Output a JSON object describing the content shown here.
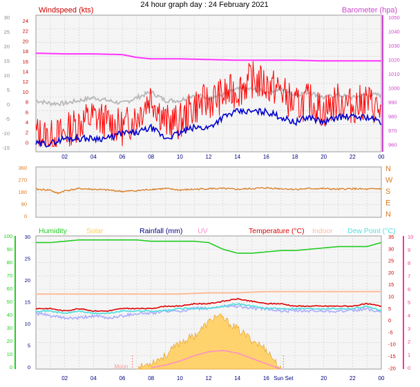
{
  "title": "24 hour graph day : 24 February 2021",
  "colors": {
    "wind_gust": "#ff0000",
    "wind_avg": "#0000cc",
    "baro": "#ff33ff",
    "temp_gray": "#bbbbbb",
    "dir": "#d97a1f",
    "humidity": "#22cc22",
    "solar": "#ffcc55",
    "rain": "#000080",
    "uv": "#ff88cc",
    "temp": "#dd0000",
    "indoor": "#ffbb99",
    "dewpoint": "#55dddd",
    "lavender": "#aaaaff",
    "axis_left_top": "#cc0000",
    "axis_right_top": "#cc44cc",
    "axis_green": "#22cc22",
    "axis_pink": "#ff3399"
  },
  "chart_data": [
    {
      "type": "line",
      "legend": {
        "left": "Windspeed (kts)",
        "right": "Barometer (hpa)"
      },
      "y_left_ticks_1": [
        "24",
        "22",
        "20",
        "18",
        "16",
        "14",
        "12",
        "10",
        "8",
        "6",
        "4",
        "2",
        "0"
      ],
      "y_left_ticks_2": [
        "30",
        "25",
        "20",
        "15",
        "10",
        "5",
        "0",
        "-5",
        "-10",
        "-15"
      ],
      "y_right_ticks": [
        "1050",
        "1040",
        "1030",
        "1020",
        "1010",
        "1000",
        "990",
        "980",
        "970",
        "960"
      ],
      "x_ticks": [
        "02",
        "04",
        "06",
        "08",
        "10",
        "12",
        "14",
        "16",
        "18",
        "20",
        "22",
        "00"
      ],
      "series": [
        {
          "name": "Barometer (hpa)",
          "x": [
            0,
            2,
            4,
            6,
            7,
            8,
            10,
            12,
            14,
            16,
            18,
            20,
            22,
            24
          ],
          "values": [
            1025,
            1024.5,
            1024.5,
            1024,
            1022,
            1021,
            1021,
            1020.5,
            1020,
            1020,
            1020,
            1019.5,
            1019.5,
            1019.5
          ]
        },
        {
          "x": [
            0,
            1,
            2,
            3,
            4,
            5,
            6,
            7,
            8,
            9,
            10,
            11,
            12,
            13,
            14,
            15,
            16,
            17,
            18,
            19,
            20,
            21,
            22,
            23,
            24
          ],
          "values": [
            1,
            0,
            0,
            1,
            2,
            1,
            0,
            2,
            4,
            1,
            1,
            3,
            2,
            3,
            5,
            5,
            4,
            5,
            3,
            4,
            2,
            3,
            2,
            3,
            3
          ]
        },
        {
          "x": [
            0,
            1,
            2,
            3,
            4,
            5,
            6,
            7,
            8,
            9,
            10,
            11,
            12,
            13,
            14,
            15,
            16,
            17,
            18,
            19,
            20,
            21,
            22,
            23,
            24
          ],
          "values": [
            3,
            2,
            3,
            5,
            6,
            5,
            4,
            6,
            10,
            5,
            5,
            8,
            9,
            10,
            11,
            13,
            12,
            11,
            8,
            9,
            7,
            9,
            8,
            9,
            7
          ]
        },
        {
          "x": [
            0,
            1,
            2,
            3,
            4,
            5,
            6,
            7,
            8,
            9,
            10,
            11,
            12,
            13,
            14,
            15,
            16,
            17,
            18,
            19,
            20,
            21,
            22,
            23,
            24
          ],
          "values": [
            1,
            1,
            2,
            2,
            2,
            2,
            3,
            3,
            4,
            2,
            3,
            4,
            4,
            6,
            7,
            7,
            7,
            6,
            5,
            6,
            5,
            6,
            6,
            6,
            5
          ]
        }
      ]
    },
    {
      "type": "line",
      "legend": {
        "right": [
          "N",
          "W",
          "S",
          "E",
          "N"
        ]
      },
      "y_left_ticks": [
        "360",
        "270",
        "180",
        "90",
        "0"
      ],
      "series": [
        {
          "x": [
            0,
            1,
            1.5,
            2,
            3,
            4,
            5,
            6,
            7,
            8,
            9,
            10,
            11,
            12,
            13,
            14,
            15,
            16,
            17,
            18,
            19,
            20,
            21,
            22,
            23,
            24
          ],
          "values": [
            200,
            195,
            170,
            190,
            205,
            200,
            195,
            185,
            190,
            200,
            205,
            195,
            200,
            205,
            205,
            200,
            205,
            210,
            205,
            200,
            205,
            205,
            200,
            205,
            200,
            205
          ]
        }
      ]
    },
    {
      "type": "line",
      "legend": [
        "Humidity",
        "Solar",
        "Rainfall (mm)",
        "UV",
        "Temperature (°C)",
        "Indoor",
        "Dew Point (°C)"
      ],
      "y_left_ticks_1": [
        "100",
        "90",
        "80",
        "70",
        "60",
        "50",
        "40",
        "30",
        "20",
        "10",
        "0"
      ],
      "y_left_ticks_2": [
        "30",
        "25",
        "20",
        "15",
        "10",
        "5",
        "0"
      ],
      "y_right_ticks_1": [
        "35",
        "30",
        "25",
        "20",
        "15",
        "10",
        "5",
        "0",
        "-5",
        "-10",
        "-15",
        "-20"
      ],
      "y_right_ticks_2": [
        "10",
        "9",
        "8",
        "7",
        "6",
        "5",
        "4",
        "3",
        "2",
        "1",
        "0"
      ],
      "annotations": [
        "Moon",
        "Sun Set"
      ],
      "series": [
        {
          "name": "Humidity",
          "x": [
            0,
            1,
            2,
            3,
            4,
            5,
            6,
            7,
            8,
            9,
            10,
            11,
            12,
            13,
            14,
            15,
            16,
            17,
            18,
            19,
            20,
            21,
            22,
            23,
            24
          ],
          "values": [
            95,
            95,
            96,
            97,
            97,
            97,
            97,
            97,
            96,
            96,
            96,
            96,
            95,
            90,
            87,
            87,
            88,
            89,
            89,
            90,
            91,
            92,
            92,
            92,
            95
          ]
        },
        {
          "name": "Solar",
          "x": [
            7,
            8,
            9,
            10,
            11,
            12,
            12.5,
            13,
            14,
            15,
            16,
            17
          ],
          "values": [
            0,
            5,
            10,
            20,
            25,
            35,
            40,
            38,
            30,
            22,
            15,
            0
          ]
        },
        {
          "name": "UV",
          "x": [
            8,
            9,
            10,
            11,
            12,
            13,
            14,
            15,
            16,
            17
          ],
          "values": [
            0.1,
            0.3,
            0.6,
            1.0,
            1.3,
            1.4,
            1.2,
            0.8,
            0.4,
            0
          ]
        },
        {
          "name": "Temperature (°C)",
          "x": [
            0,
            1,
            2,
            3,
            4,
            5,
            6,
            7,
            8,
            9,
            10,
            11,
            12,
            13,
            14,
            15,
            16,
            17,
            18,
            19,
            20,
            21,
            22,
            23,
            24
          ],
          "values": [
            5,
            5,
            4,
            5,
            4,
            4,
            5,
            5,
            5,
            6,
            6,
            7,
            7,
            8,
            9,
            8,
            7,
            7,
            6,
            6,
            6,
            6,
            6,
            7,
            6
          ]
        },
        {
          "name": "Indoor",
          "x": [
            0,
            2,
            4,
            6,
            8,
            10,
            12,
            14,
            16,
            18,
            20,
            22,
            24
          ],
          "values": [
            11,
            11,
            11,
            11,
            11,
            11,
            11.5,
            11.5,
            12,
            12,
            12,
            12,
            12
          ]
        },
        {
          "name": "Dew Point (°C)",
          "x": [
            0,
            1,
            2,
            3,
            4,
            5,
            6,
            7,
            8,
            9,
            10,
            11,
            12,
            13,
            14,
            15,
            16,
            17,
            18,
            19,
            20,
            21,
            22,
            23,
            24
          ],
          "values": [
            4,
            4,
            3,
            4,
            3,
            3,
            4,
            4,
            4,
            4,
            5,
            5,
            5,
            6,
            7,
            6,
            5,
            5,
            5,
            5,
            5,
            5,
            5,
            6,
            4
          ]
        },
        {
          "x": [
            0,
            1,
            2,
            3,
            4,
            5,
            6,
            7,
            8,
            9,
            10,
            11,
            12,
            13,
            14,
            15,
            16,
            17,
            18,
            19,
            20,
            21,
            22,
            23,
            24
          ],
          "values": [
            3,
            2,
            1,
            1,
            2,
            1,
            2,
            3,
            3,
            4,
            4,
            5,
            5,
            6,
            6,
            5,
            5,
            4,
            4,
            4,
            4,
            4,
            4,
            5,
            3
          ]
        }
      ]
    }
  ]
}
